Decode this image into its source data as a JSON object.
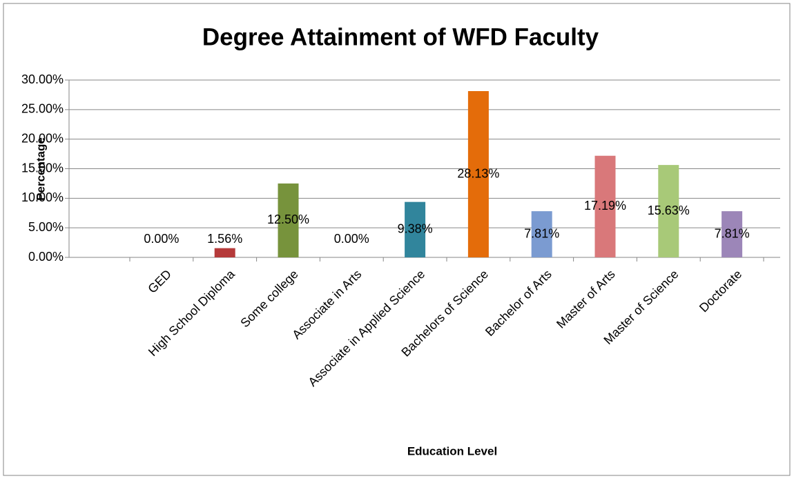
{
  "chart_data": {
    "type": "bar",
    "title": "Degree Attainment of WFD Faculty",
    "x_label": "Education Level",
    "y_label": "Percentage",
    "categories": [
      "GED",
      "High School Diploma",
      "Some college",
      "Associate in Arts",
      "Associate in Applied Science",
      "Bachelors of Science",
      "Bachelor of Arts",
      "Master of Arts",
      "Master of Science",
      "Doctorate"
    ],
    "values": [
      0,
      1.56,
      12.5,
      0,
      9.38,
      28.13,
      7.81,
      17.19,
      15.63,
      7.81
    ],
    "value_labels": [
      "0.00%",
      "1.56%",
      "12.50%",
      "0.00%",
      "9.38%",
      "28.13%",
      "7.81%",
      "17.19%",
      "15.63%",
      "7.81%"
    ],
    "colors": [
      "#4f81bd",
      "#b53a3a",
      "#77933c",
      "#7f6aa0",
      "#31859c",
      "#e46c0a",
      "#7b9bd1",
      "#d9787a",
      "#a8c978",
      "#9c86b8"
    ],
    "ylim": [
      0,
      30
    ],
    "yticks": [
      {
        "value": 0,
        "label": "0.00%"
      },
      {
        "value": 5,
        "label": "5.00%"
      },
      {
        "value": 10,
        "label": "10.00%"
      },
      {
        "value": 15,
        "label": "15.00%"
      },
      {
        "value": 20,
        "label": "20.00%"
      },
      {
        "value": 25,
        "label": "25.00%"
      },
      {
        "value": 30,
        "label": "30.00%"
      }
    ],
    "grid": true
  }
}
